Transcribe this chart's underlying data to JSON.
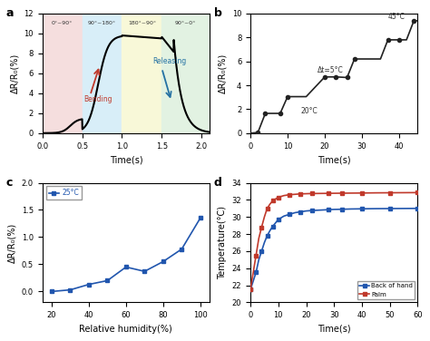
{
  "panel_a": {
    "label": "a",
    "bg_colors": [
      "#f5dede",
      "#d8eef8",
      "#f8f8d8",
      "#e2f2e2"
    ],
    "bg_regions": [
      0.0,
      0.5,
      1.0,
      1.5,
      2.1
    ],
    "region_labels": [
      "0°~90°",
      "90°~180°",
      "180°~90°",
      "90°~0°"
    ],
    "xlabel": "Time(s)",
    "ylabel": "ΔR/R₀(%)",
    "xlim": [
      0.0,
      2.1
    ],
    "ylim": [
      0,
      12
    ],
    "yticks": [
      0,
      2,
      4,
      6,
      8,
      10,
      12
    ],
    "xticks": [
      0.0,
      0.5,
      1.0,
      1.5,
      2.0
    ],
    "bending_arrow_color": "#c0392b",
    "releasing_arrow_color": "#2471a3",
    "bending_text": "Bending",
    "releasing_text": "Releasing"
  },
  "panel_b": {
    "label": "b",
    "x": [
      0,
      2,
      4,
      8,
      10,
      15,
      20,
      23,
      26,
      28,
      30,
      35,
      37,
      40,
      42,
      44,
      45
    ],
    "y": [
      0.0,
      0.05,
      1.65,
      1.65,
      3.05,
      3.05,
      4.7,
      4.7,
      4.65,
      6.2,
      6.2,
      6.2,
      7.8,
      7.8,
      7.8,
      9.4,
      9.4
    ],
    "markers_x": [
      2,
      4,
      8,
      10,
      20,
      23,
      26,
      28,
      37,
      40,
      44
    ],
    "markers_y": [
      0.05,
      1.65,
      1.65,
      3.05,
      4.7,
      4.7,
      4.65,
      6.2,
      7.8,
      7.8,
      9.4
    ],
    "xlabel": "Time(s)",
    "ylabel": "ΔR/R₀(%)",
    "xlim": [
      0,
      45
    ],
    "ylim": [
      0,
      10
    ],
    "xticks": [
      0,
      10,
      20,
      30,
      40
    ],
    "yticks": [
      0,
      2,
      4,
      6,
      8,
      10
    ],
    "marker": "o",
    "color": "#222222",
    "label_20": "20°C",
    "label_45": "45°C",
    "label_dt": "Δt=5°C"
  },
  "panel_c": {
    "label": "c",
    "x": [
      20,
      30,
      40,
      50,
      60,
      70,
      80,
      90,
      100
    ],
    "y": [
      0.0,
      0.03,
      0.13,
      0.2,
      0.45,
      0.37,
      0.55,
      0.78,
      1.35
    ],
    "xlabel": "Relative humidity(%)",
    "ylabel": "ΔR/R₀(%)",
    "xlim": [
      15,
      105
    ],
    "ylim": [
      -0.2,
      2.0
    ],
    "xticks": [
      20,
      40,
      60,
      80,
      100
    ],
    "yticks": [
      0.0,
      0.5,
      1.0,
      1.5,
      2.0
    ],
    "marker": "s",
    "color": "#2156ae",
    "legend_label": "25°C"
  },
  "panel_d": {
    "label": "d",
    "x_boh": [
      0,
      1,
      2,
      3,
      4,
      5,
      6,
      7,
      8,
      9,
      10,
      12,
      14,
      16,
      18,
      20,
      22,
      25,
      28,
      30,
      33,
      36,
      40,
      45,
      50,
      55,
      60
    ],
    "y_boh": [
      21.5,
      22.5,
      23.5,
      25.0,
      26.0,
      27.0,
      27.8,
      28.4,
      28.9,
      29.3,
      29.7,
      30.1,
      30.3,
      30.5,
      30.6,
      30.7,
      30.75,
      30.8,
      30.85,
      30.88,
      30.9,
      30.93,
      30.95,
      30.97,
      30.98,
      30.99,
      31.0
    ],
    "x_palm": [
      0,
      1,
      2,
      3,
      4,
      5,
      6,
      7,
      8,
      9,
      10,
      12,
      14,
      16,
      18,
      20,
      22,
      25,
      28,
      30,
      33,
      36,
      40,
      45,
      50,
      55,
      60
    ],
    "y_palm": [
      21.5,
      23.5,
      25.5,
      27.5,
      28.8,
      30.0,
      31.0,
      31.5,
      31.9,
      32.1,
      32.3,
      32.5,
      32.6,
      32.65,
      32.7,
      32.72,
      32.74,
      32.75,
      32.76,
      32.77,
      32.78,
      32.79,
      32.8,
      32.82,
      32.83,
      32.84,
      32.85
    ],
    "xlabel": "Time(s)",
    "ylabel": "Temperature(°C)",
    "xlim": [
      0,
      60
    ],
    "ylim": [
      20,
      34
    ],
    "xticks": [
      0,
      10,
      20,
      30,
      40,
      50,
      60
    ],
    "yticks": [
      20,
      22,
      24,
      26,
      28,
      30,
      32,
      34
    ],
    "color_boh": "#2156ae",
    "color_palm": "#c0392b",
    "legend_boh": "Back of hand",
    "legend_palm": "Palm",
    "marker": "s"
  }
}
